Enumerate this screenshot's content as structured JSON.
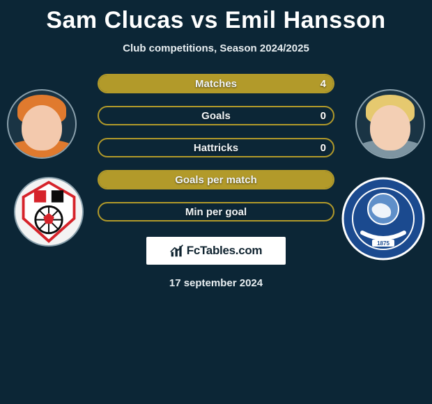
{
  "title_left": "Sam Clucas",
  "title_vs": "vs",
  "title_right": "Emil Hansson",
  "subtitle": "Club competitions, Season 2024/2025",
  "date": "17 september 2024",
  "logo_text": "FcTables.com",
  "colors": {
    "background": "#0c2636",
    "bar_border": "#b29a2a",
    "bar_fill_gold": "#b29a2a",
    "bar_fill_alt": "#1c3b4e",
    "text": "#f1f5f7"
  },
  "player_left": {
    "name": "Sam Clucas",
    "skin": "#f3c9ad",
    "hair": "#e07a2e",
    "jersey": "#e07a2e"
  },
  "player_right": {
    "name": "Emil Hansson",
    "skin": "#f3cfb4",
    "hair": "#e6c96f",
    "jersey": "#7e95a2"
  },
  "club_left": {
    "name": "Rotherham United",
    "primary": "#d6232a",
    "secondary": "#ffffff",
    "accent": "#0b0b0b"
  },
  "club_right": {
    "name": "Birmingham City",
    "primary": "#1b4a8f",
    "secondary": "#ffffff"
  },
  "bars": [
    {
      "label": "Matches",
      "left": "",
      "right": "4",
      "left_pct": 0,
      "right_pct": 100
    },
    {
      "label": "Goals",
      "left": "",
      "right": "0",
      "left_pct": 0,
      "right_pct": 0
    },
    {
      "label": "Hattricks",
      "left": "",
      "right": "0",
      "left_pct": 0,
      "right_pct": 0
    },
    {
      "label": "Goals per match",
      "left": "",
      "right": "",
      "left_pct": 0,
      "right_pct": 100
    },
    {
      "label": "Min per goal",
      "left": "",
      "right": "",
      "left_pct": 0,
      "right_pct": 0
    }
  ]
}
